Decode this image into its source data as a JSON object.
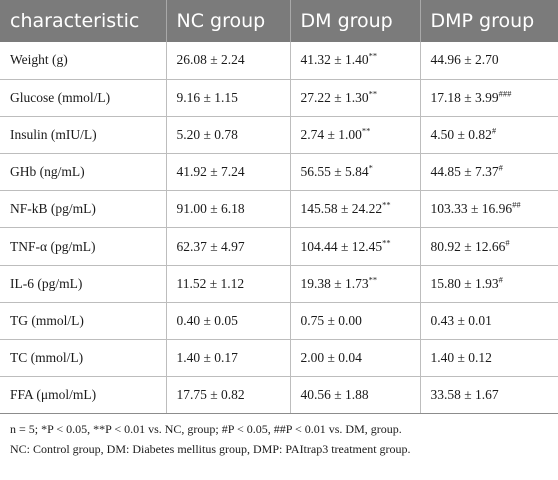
{
  "table": {
    "headers": [
      "characteristic",
      "NC group",
      "DM group",
      "DMP group"
    ],
    "rows": [
      {
        "label": "Weight (g)",
        "nc": {
          "v": "26.08 ± 2.24",
          "s": ""
        },
        "dm": {
          "v": "41.32 ± 1.40",
          "s": "**"
        },
        "dmp": {
          "v": "44.96 ± 2.70",
          "s": ""
        }
      },
      {
        "label": "Glucose (mmol/L)",
        "nc": {
          "v": "9.16 ± 1.15",
          "s": ""
        },
        "dm": {
          "v": "27.22 ± 1.30",
          "s": "**"
        },
        "dmp": {
          "v": "17.18 ± 3.99",
          "s": "###"
        }
      },
      {
        "label": "Insulin (mIU/L)",
        "nc": {
          "v": "5.20 ± 0.78",
          "s": ""
        },
        "dm": {
          "v": "2.74 ± 1.00",
          "s": "**"
        },
        "dmp": {
          "v": "4.50 ± 0.82",
          "s": "#"
        }
      },
      {
        "label": "GHb (ng/mL)",
        "nc": {
          "v": "41.92 ± 7.24",
          "s": ""
        },
        "dm": {
          "v": "56.55 ± 5.84",
          "s": "*"
        },
        "dmp": {
          "v": "44.85 ± 7.37",
          "s": "#"
        }
      },
      {
        "label": "NF-kB (pg/mL)",
        "nc": {
          "v": "91.00 ± 6.18",
          "s": ""
        },
        "dm": {
          "v": "145.58 ± 24.22",
          "s": "**"
        },
        "dmp": {
          "v": "103.33 ± 16.96",
          "s": "##"
        }
      },
      {
        "label": "TNF-α (pg/mL)",
        "nc": {
          "v": "62.37 ± 4.97",
          "s": ""
        },
        "dm": {
          "v": "104.44 ± 12.45",
          "s": "**"
        },
        "dmp": {
          "v": "80.92 ± 12.66",
          "s": "#"
        }
      },
      {
        "label": "IL-6 (pg/mL)",
        "nc": {
          "v": "11.52 ± 1.12",
          "s": ""
        },
        "dm": {
          "v": "19.38 ± 1.73",
          "s": "**"
        },
        "dmp": {
          "v": "15.80 ± 1.93",
          "s": "#"
        }
      },
      {
        "label": "TG (mmol/L)",
        "nc": {
          "v": "0.40 ± 0.05",
          "s": ""
        },
        "dm": {
          "v": "0.75 ± 0.00",
          "s": ""
        },
        "dmp": {
          "v": "0.43 ± 0.01",
          "s": ""
        }
      },
      {
        "label": "TC (mmol/L)",
        "nc": {
          "v": "1.40 ± 0.17",
          "s": ""
        },
        "dm": {
          "v": "2.00 ± 0.04",
          "s": ""
        },
        "dmp": {
          "v": "1.40 ± 0.12",
          "s": ""
        }
      },
      {
        "label": "FFA (μmol/mL)",
        "nc": {
          "v": "17.75 ± 0.82",
          "s": ""
        },
        "dm": {
          "v": "40.56 ± 1.88",
          "s": ""
        },
        "dmp": {
          "v": "33.58 ± 1.67",
          "s": ""
        }
      }
    ]
  },
  "footnotes": {
    "line1": "n = 5; *P < 0.05, **P < 0.01 vs. NC, group; #P < 0.05, ##P < 0.01 vs. DM, group.",
    "line2": "NC: Control group, DM: Diabetes mellitus group, DMP: PAItrap3 treatment group."
  }
}
